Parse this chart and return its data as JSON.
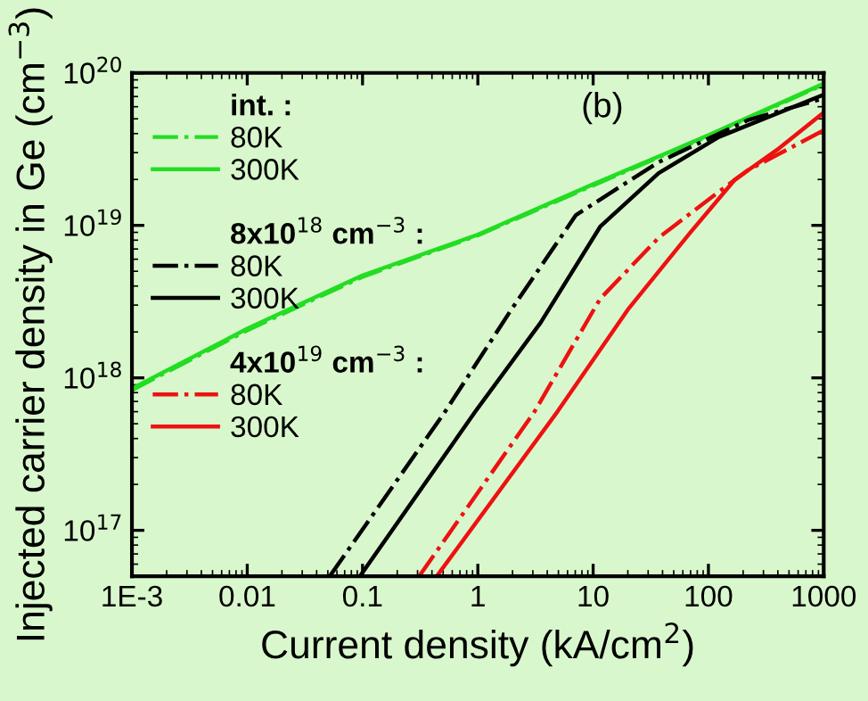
{
  "chart_data": {
    "type": "line",
    "xlabel": "Current density (kA/cm$^{2}$)",
    "ylabel": "Injected carrier density in Ge (cm$^{−3}$)",
    "log": "xy",
    "xlim": [
      0.001,
      1000
    ],
    "ylim": [
      5e+16,
      1e+20
    ],
    "xticks": [
      {
        "value": 0.001,
        "label": "1E-3"
      },
      0.01,
      0.1,
      1,
      10,
      100,
      1000
    ],
    "yticks": [
      {
        "value": 1e+17,
        "label": "10$^{17}$"
      },
      {
        "value": 1e+18,
        "label": "10$^{18}$"
      },
      {
        "value": 1e+19,
        "label": "10$^{19}$"
      },
      {
        "value": 1e+20,
        "label": "10$^{20}$"
      }
    ],
    "grid": false,
    "legend": "top left",
    "annotations": [
      "int. :",
      "8x10$^{18}$ cm$^{−3}$ :",
      "4x10$^{19}$ cm$^{−3}$ :",
      "(b)"
    ],
    "series": [
      {
        "name": "80K",
        "color": "#22dd22",
        "line_style": "dashdot",
        "x": [
          0.001,
          0.01,
          0.1,
          1,
          10,
          100,
          1000
        ],
        "values": [
          8.3e+17,
          2.05e+18,
          4.6e+18,
          8.6e+18,
          1.83e+19,
          3.85e+19,
          8.4e+19
        ]
      },
      {
        "name": "300K",
        "color": "#22dd22",
        "line_style": "solid",
        "x": [
          0.001,
          0.01,
          0.1,
          1,
          10,
          100,
          1000
        ],
        "values": [
          8.5e+17,
          2.1e+18,
          4.7e+18,
          8.7e+18,
          1.86e+19,
          3.9e+19,
          8.5e+19
        ]
      },
      {
        "name": "80K",
        "color": "#000000",
        "line_style": "dashdot",
        "x": [
          0.052,
          0.52,
          1.95,
          7.1,
          37,
          220,
          1000
        ],
        "values": [
          5e+16,
          6e+17,
          2.8e+18,
          1.17e+19,
          2.6e+19,
          4.9e+19,
          6.8e+19
        ]
      },
      {
        "name": "300K",
        "color": "#000000",
        "line_style": "solid",
        "x": [
          0.095,
          0.95,
          3.5,
          11.5,
          37,
          123,
          1000
        ],
        "values": [
          5e+16,
          6e+17,
          2.3e+18,
          9.8e+18,
          2.2e+19,
          3.8e+19,
          7.2e+19
        ]
      },
      {
        "name": "80K",
        "color": "#ee1111",
        "line_style": "dashdot",
        "x": [
          0.31,
          3.1,
          11.5,
          37,
          123,
          220,
          1000
        ],
        "values": [
          5e+16,
          6e+17,
          3.3e+18,
          8.3e+18,
          1.66e+19,
          2.3e+19,
          4.2e+19
        ]
      },
      {
        "name": "300K",
        "color": "#ee1111",
        "line_style": "solid",
        "x": [
          0.44,
          4.9,
          20,
          69,
          170,
          410,
          1000
        ],
        "values": [
          5e+16,
          6e+17,
          2.8e+18,
          8.9e+18,
          2e+19,
          3.2e+19,
          5.5e+19
        ]
      }
    ]
  }
}
